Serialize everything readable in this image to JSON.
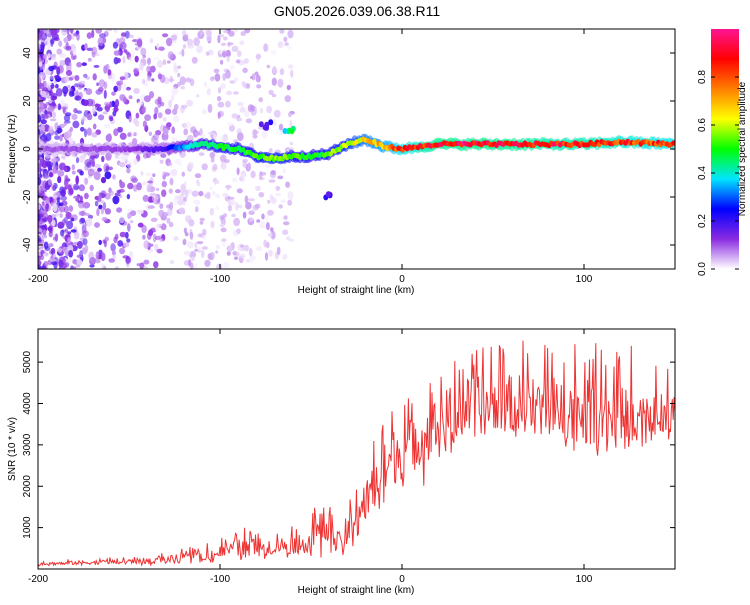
{
  "figure": {
    "title": "GN05.2026.039.06.38.R11"
  },
  "chart_data": [
    {
      "type": "heatmap",
      "title": "GN05.2026.039.06.38.R11",
      "xlabel": "Height of straight line (km)",
      "ylabel": "Frequency (Hz)",
      "xlim": [
        -200,
        150
      ],
      "ylim": [
        -50,
        50
      ],
      "xticks": [
        -200,
        -100,
        0,
        100
      ],
      "yticks": [
        -40,
        -20,
        0,
        20,
        40
      ],
      "colorbar": {
        "label": "Normalized spectral amplitude",
        "range": [
          0,
          1
        ],
        "ticks": [
          "0.0",
          "0.2",
          "0.4",
          "0.6",
          "0.8"
        ],
        "colors": [
          "#ffffff",
          "#8a2be2",
          "#0000ff",
          "#00e5ff",
          "#00ff00",
          "#ffff00",
          "#ff7f00",
          "#ff0000",
          "#ff1493"
        ]
      },
      "ridge": {
        "x": [
          -200,
          -150,
          -130,
          -120,
          -110,
          -100,
          -90,
          -80,
          -70,
          -60,
          -50,
          -40,
          -30,
          -20,
          -10,
          0,
          10,
          20,
          40,
          60,
          80,
          100,
          120,
          150
        ],
        "y": [
          0,
          0,
          0,
          1,
          2,
          1,
          0,
          -3,
          -4,
          -3,
          -3,
          -2,
          2,
          4,
          1,
          0,
          1,
          2,
          2,
          2,
          2,
          2,
          3,
          2
        ],
        "amplitude": [
          0.1,
          0.12,
          0.2,
          0.35,
          0.45,
          0.5,
          0.5,
          0.55,
          0.6,
          0.55,
          0.5,
          0.55,
          0.6,
          0.7,
          0.75,
          0.85,
          0.9,
          0.95,
          0.95,
          0.95,
          0.92,
          0.92,
          0.88,
          0.85
        ]
      },
      "features": [
        {
          "x": -75,
          "y": 10,
          "amplitude": 0.2
        },
        {
          "x": -62,
          "y": 7,
          "amplitude": 0.45
        },
        {
          "x": -40,
          "y": -20,
          "amplitude": 0.2
        }
      ]
    },
    {
      "type": "line",
      "xlabel": "Height of straight line (km)",
      "ylabel": "SNR (10 * v/v)",
      "xlim": [
        -200,
        150
      ],
      "ylim": [
        0,
        5800
      ],
      "xticks": [
        -200,
        -100,
        0,
        100
      ],
      "yticks": [
        1000,
        2000,
        3000,
        4000,
        5000
      ],
      "color": "#ee3333",
      "envelope": {
        "x": [
          -200,
          -180,
          -150,
          -130,
          -110,
          -90,
          -70,
          -55,
          -45,
          -35,
          -25,
          -15,
          -5,
          5,
          15,
          25,
          35,
          50,
          70,
          90,
          110,
          130,
          150
        ],
        "low": [
          70,
          80,
          90,
          100,
          130,
          200,
          250,
          250,
          220,
          200,
          600,
          1100,
          1500,
          1800,
          2100,
          2500,
          2700,
          3000,
          3000,
          2900,
          2700,
          2800,
          3200
        ],
        "high": [
          200,
          250,
          300,
          400,
          600,
          1000,
          1000,
          1100,
          1900,
          1200,
          2200,
          3400,
          4000,
          4300,
          4600,
          5000,
          5300,
          5500,
          5600,
          5600,
          5700,
          5400,
          5000
        ],
        "mean": [
          120,
          150,
          180,
          230,
          300,
          500,
          560,
          600,
          950,
          600,
          1300,
          2000,
          2700,
          3000,
          3300,
          3700,
          3900,
          4000,
          4000,
          3900,
          3700,
          3600,
          3800
        ]
      }
    }
  ]
}
